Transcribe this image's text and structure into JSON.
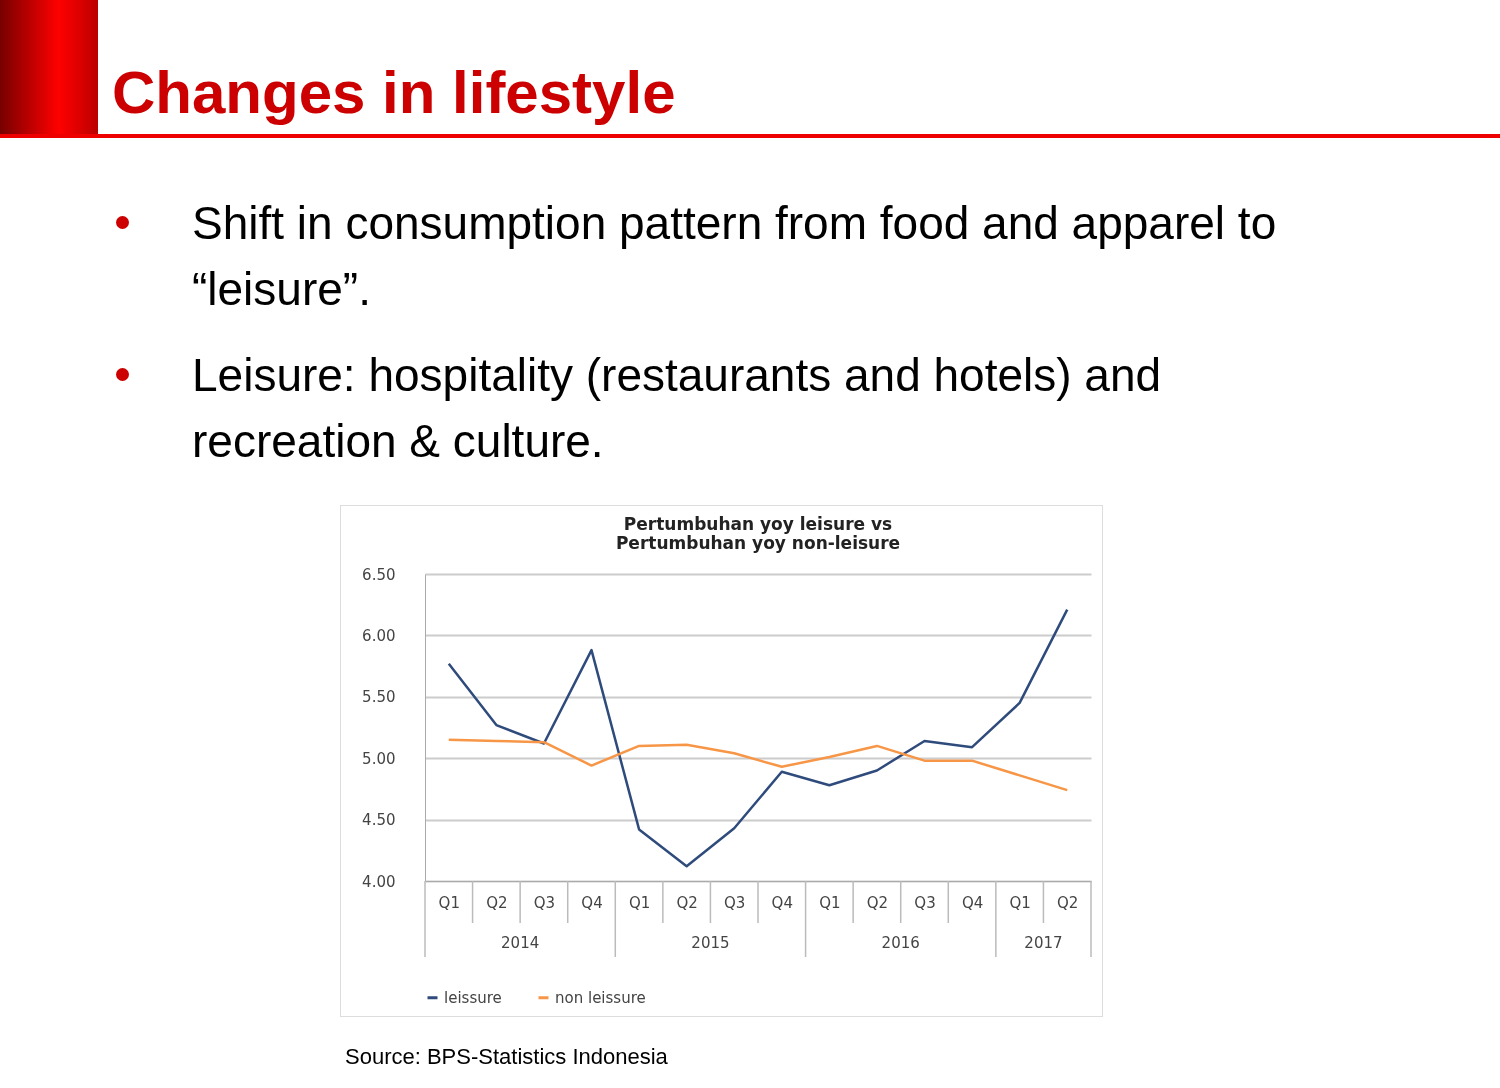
{
  "chart_data": {
    "type": "line",
    "title": "Changes in lifestyle",
    "subtitle": "Pertumbuhan yoy leisure vs Pertumbuhan yoy non-leisure",
    "annotations": [
      "Shift in consumption pattern from food and apparel to “leisure”.",
      "Leisure: hospitality (restaurants and hotels) and recreation & culture.",
      "2014",
      "2015",
      "2016",
      "2017",
      "Source: BPS-Statistics Indonesia"
    ],
    "categories": [
      "Q1",
      "Q2",
      "Q3",
      "Q4",
      "Q1",
      "Q2",
      "Q3",
      "Q4",
      "Q1",
      "Q2",
      "Q3",
      "Q4",
      "Q1",
      "Q2"
    ],
    "series": [
      {
        "name": "leissure",
        "color": "#2f4b7c",
        "values": [
          5.77,
          5.27,
          5.12,
          5.88,
          4.42,
          4.12,
          4.43,
          4.89,
          4.78,
          4.9,
          5.14,
          5.09,
          5.45,
          6.21
        ]
      },
      {
        "name": "non leissure",
        "color": "#f79646",
        "values": [
          5.15,
          5.14,
          5.13,
          4.94,
          5.1,
          5.11,
          5.04,
          4.93,
          5.01,
          5.1,
          4.98,
          4.98,
          4.86,
          4.74
        ]
      }
    ],
    "ylim": [
      4,
      6.5
    ],
    "yticks": [
      {
        "value": 4,
        "label": "4.00"
      },
      {
        "value": 4.5,
        "label": "4.50"
      },
      {
        "value": 5,
        "label": "5.00"
      },
      {
        "value": 5.5,
        "label": "5.50"
      },
      {
        "value": 6,
        "label": "6.00"
      },
      {
        "value": 6.5,
        "label": "6.50"
      }
    ],
    "grid": "y",
    "legend": "bottom"
  }
}
